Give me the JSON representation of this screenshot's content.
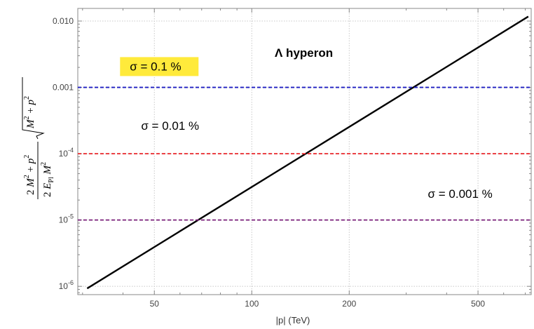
{
  "chart_data": {
    "type": "line",
    "title": "Λ hyperon",
    "xlabel": "|p| (TeV)",
    "ylabel": "(2M² + p²)/(2E_Pl M²) · √(M² + p²)",
    "x_scale": "log",
    "y_scale": "log",
    "xlim": [
      29,
      730
    ],
    "ylim": [
      7.5e-07,
      0.0155
    ],
    "grid": true,
    "x_ticks": [
      50,
      100,
      200,
      500
    ],
    "x_tick_labels": [
      "50",
      "100",
      "200",
      "500"
    ],
    "y_ticks": [
      1e-06,
      1e-05,
      0.0001,
      0.001,
      0.01
    ],
    "y_tick_labels": [
      {
        "base": "10",
        "exp": "-6"
      },
      {
        "base": "10",
        "exp": "-5"
      },
      {
        "base": "10",
        "exp": "-4"
      },
      {
        "plain": "0.001"
      },
      {
        "plain": "0.010"
      }
    ],
    "series": [
      {
        "kind": "line",
        "color": "#000000",
        "dashed": false,
        "x": [
          31,
          715
        ],
        "y": [
          9.3e-07,
          0.0117
        ]
      },
      {
        "kind": "hline",
        "color": "#1f1fc2",
        "dashed": true,
        "y": 0.001
      },
      {
        "kind": "hline",
        "color": "#e8262a",
        "dashed": true,
        "y": 0.0001
      },
      {
        "kind": "hline",
        "color": "#7a1f7a",
        "dashed": true,
        "y": 1e-05
      }
    ],
    "annotations": [
      {
        "text": "σ = 0.1 %",
        "x": 42,
        "y": 0.0018,
        "highlight": "#ffea3b"
      },
      {
        "text": "σ = 0.01 %",
        "x": 45.5,
        "y": 0.00023,
        "highlight": null
      },
      {
        "text": "σ = 0.001 %",
        "x": 350,
        "y": 2.15e-05,
        "highlight": null
      }
    ]
  }
}
